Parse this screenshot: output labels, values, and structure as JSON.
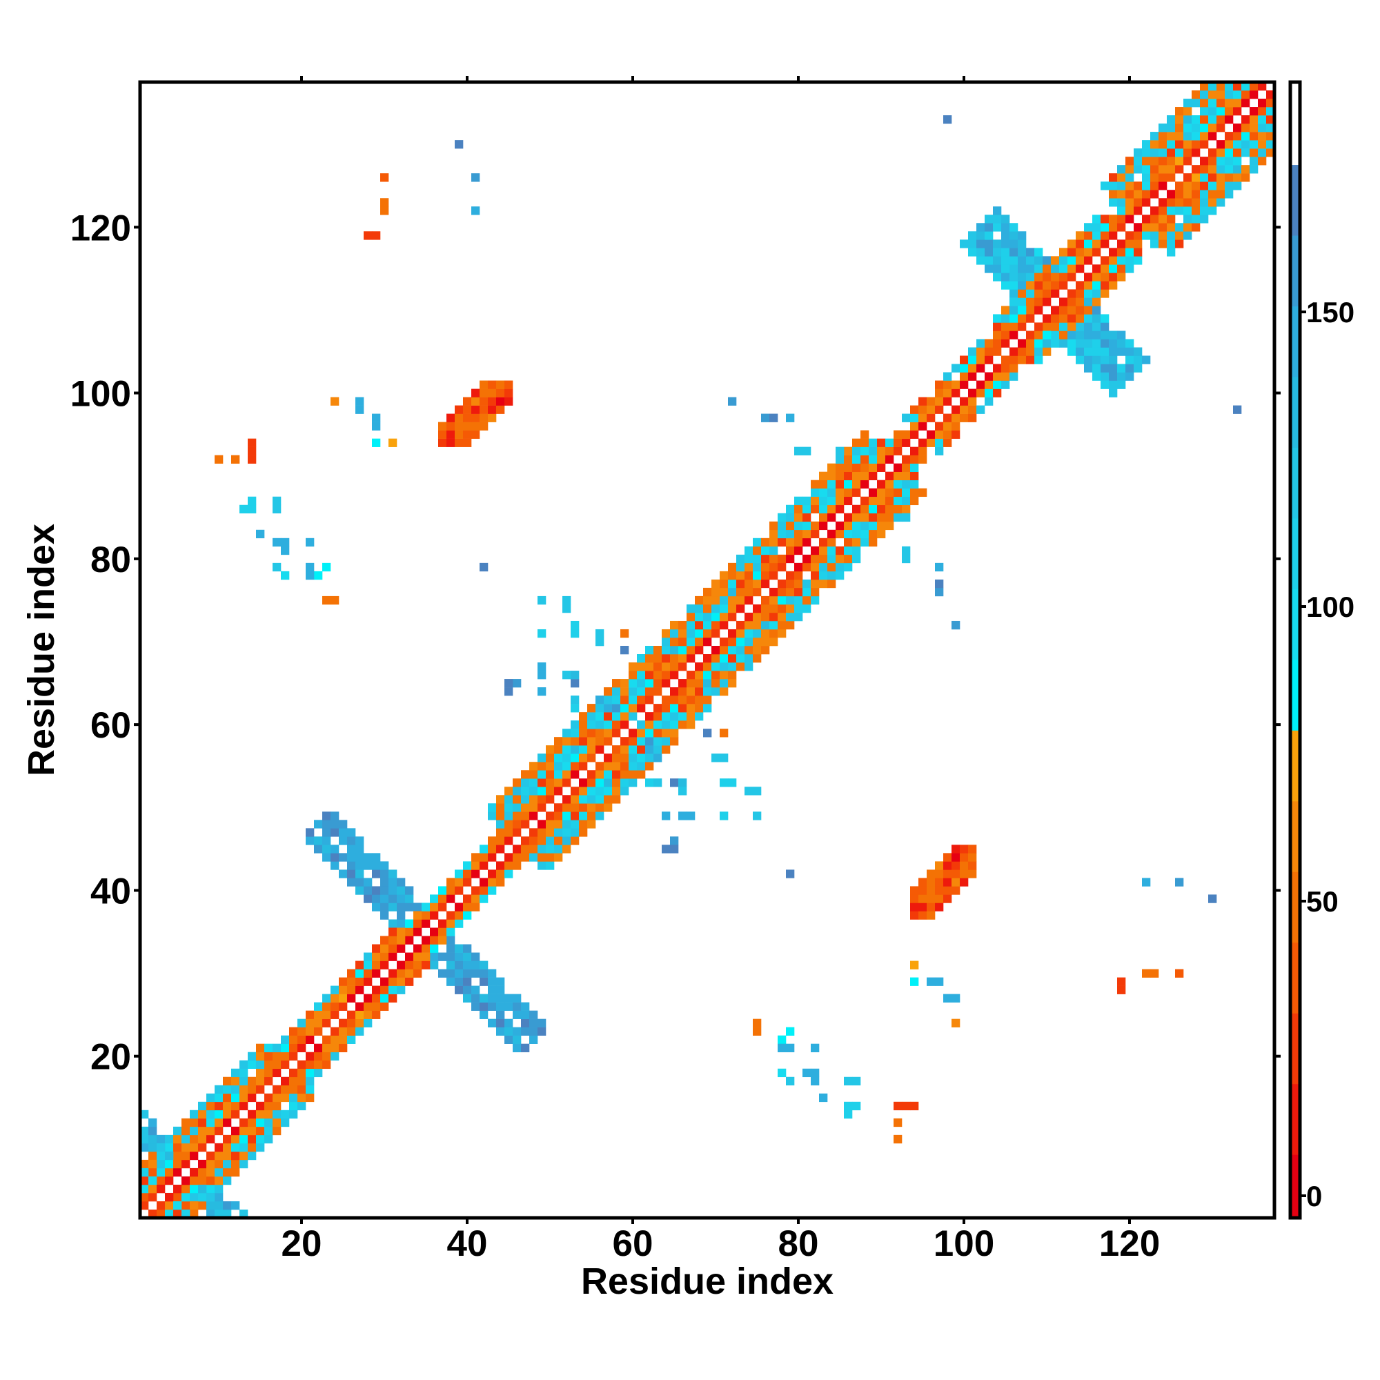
{
  "chart_data": {
    "type": "heatmap",
    "title": "",
    "xlabel": "Residue index",
    "ylabel": "Residue index",
    "n_residues": 137,
    "xlim": [
      0.5,
      137.5
    ],
    "ylim": [
      0.5,
      137.5
    ],
    "xticks": [
      20,
      40,
      60,
      80,
      100,
      120
    ],
    "yticks": [
      20,
      40,
      60,
      80,
      100,
      120
    ],
    "xtick_labels": [
      "20",
      "40",
      "60",
      "80",
      "100",
      "120"
    ],
    "ytick_labels": [
      "20",
      "40",
      "60",
      "80",
      "100",
      "120"
    ],
    "symmetric": true,
    "colorbar": {
      "range": [
        -3.75,
        189
      ],
      "ticks": [
        0,
        50,
        100,
        150
      ],
      "tick_labels": [
        "0",
        "50",
        "100",
        "150"
      ],
      "bins": [
        {
          "from": -3.75,
          "to": 7,
          "color": "#e60012"
        },
        {
          "from": 7,
          "to": 19,
          "color": "#ee1a0c"
        },
        {
          "from": 19,
          "to": 31,
          "color": "#f33a08"
        },
        {
          "from": 31,
          "to": 43,
          "color": "#f55a05"
        },
        {
          "from": 43,
          "to": 55,
          "color": "#f47205"
        },
        {
          "from": 55,
          "to": 67,
          "color": "#f6870a"
        },
        {
          "from": 67,
          "to": 79,
          "color": "#f9a20c"
        },
        {
          "from": 79,
          "to": 91,
          "color": "#00f0f8"
        },
        {
          "from": 91,
          "to": 103,
          "color": "#18dbef"
        },
        {
          "from": 103,
          "to": 115,
          "color": "#1fd0ea"
        },
        {
          "from": 115,
          "to": 127,
          "color": "#24c6e6"
        },
        {
          "from": 127,
          "to": 139,
          "color": "#27bbe0"
        },
        {
          "from": 139,
          "to": 151,
          "color": "#2eaede"
        },
        {
          "from": 151,
          "to": 163,
          "color": "#399bd2"
        },
        {
          "from": 163,
          "to": 175,
          "color": "#4b82c0"
        },
        {
          "from": 175,
          "to": 189,
          "color": "#ffffff"
        }
      ]
    },
    "diagonal_band": {
      "segments": [
        {
          "from": 1,
          "to": 20,
          "halfwidth": 6
        },
        {
          "from": 20,
          "to": 34,
          "halfwidth": 4
        },
        {
          "from": 34,
          "to": 46,
          "halfwidth": 3
        },
        {
          "from": 46,
          "to": 72,
          "halfwidth": 7
        },
        {
          "from": 72,
          "to": 92,
          "halfwidth": 7
        },
        {
          "from": 92,
          "to": 106,
          "halfwidth": 4
        },
        {
          "from": 106,
          "to": 121,
          "halfwidth": 5
        },
        {
          "from": 121,
          "to": 138,
          "halfwidth": 8
        }
      ],
      "values_by_offset": [
        null,
        15,
        50,
        100,
        40,
        110,
        60,
        120,
        45
      ]
    },
    "antiparallel_crosses": [
      {
        "center": 35,
        "halfwidth": 2,
        "extent": 13,
        "vmin": 135,
        "vmax": 172
      },
      {
        "center": 111,
        "halfwidth": 3,
        "extent": 9,
        "vmin": 100,
        "vmax": 165
      },
      {
        "center": 5.5,
        "halfwidth": 2,
        "extent": 6,
        "vmin": 115,
        "vmax": 160
      }
    ],
    "blobs": [
      {
        "x": [
          94,
          101
        ],
        "y": [
          37,
          45
        ],
        "offset": [
          54,
          59
        ],
        "vmin": 5,
        "vmax": 60
      }
    ],
    "points": [
      [
        133,
        98,
        165
      ],
      [
        72,
        99,
        150
      ],
      [
        76,
        97,
        160
      ],
      [
        79,
        97,
        160
      ],
      [
        80,
        93,
        125
      ],
      [
        81,
        93,
        125
      ],
      [
        93,
        85,
        125
      ],
      [
        97,
        79,
        140
      ],
      [
        97,
        77,
        165
      ],
      [
        99,
        72,
        160
      ],
      [
        79,
        42,
        165
      ],
      [
        122,
        41,
        150
      ],
      [
        126,
        41,
        160
      ],
      [
        130,
        39,
        165
      ],
      [
        119,
        29,
        20
      ],
      [
        119,
        28,
        20
      ],
      [
        122,
        30,
        45
      ],
      [
        123,
        30,
        45
      ],
      [
        126,
        30,
        40
      ],
      [
        94,
        31,
        75
      ],
      [
        94,
        29,
        85
      ],
      [
        96,
        29,
        140
      ],
      [
        97,
        29,
        140
      ],
      [
        98,
        27,
        145
      ],
      [
        99,
        27,
        145
      ],
      [
        99,
        24,
        60
      ],
      [
        75,
        23,
        45
      ],
      [
        75,
        24,
        45
      ],
      [
        78,
        22,
        85
      ],
      [
        79,
        23,
        90
      ],
      [
        78,
        21,
        140
      ],
      [
        79,
        21,
        140
      ],
      [
        82,
        21,
        150
      ],
      [
        78,
        18,
        95
      ],
      [
        79,
        17,
        120
      ],
      [
        81,
        18,
        145
      ],
      [
        82,
        18,
        150
      ],
      [
        82,
        17,
        150
      ],
      [
        83,
        15,
        145
      ],
      [
        86,
        17,
        115
      ],
      [
        87,
        17,
        115
      ],
      [
        86,
        14,
        110
      ],
      [
        87,
        14,
        110
      ],
      [
        86,
        13,
        110
      ],
      [
        92,
        14,
        20
      ],
      [
        93,
        14,
        20
      ],
      [
        94,
        14,
        25
      ],
      [
        92,
        12,
        45
      ],
      [
        92,
        10,
        45
      ],
      [
        62,
        53,
        110
      ],
      [
        63,
        53,
        120
      ],
      [
        65,
        53,
        165
      ],
      [
        66,
        53,
        130
      ],
      [
        64,
        49,
        140
      ],
      [
        66,
        49,
        150
      ],
      [
        67,
        49,
        150
      ],
      [
        65,
        46,
        160
      ],
      [
        64,
        45,
        165
      ],
      [
        65,
        45,
        165
      ],
      [
        71,
        53,
        110
      ],
      [
        72,
        53,
        110
      ],
      [
        74,
        52,
        125
      ],
      [
        75,
        52,
        125
      ],
      [
        71,
        49,
        110
      ],
      [
        75,
        49,
        120
      ],
      [
        70,
        56,
        115
      ],
      [
        71,
        56,
        115
      ],
      [
        69,
        59,
        165
      ],
      [
        71,
        59,
        50
      ],
      [
        66,
        52,
        120
      ],
      [
        62,
        57,
        150
      ],
      [
        63,
        56,
        140
      ],
      [
        60,
        61,
        125
      ],
      [
        58,
        62,
        160
      ]
    ]
  }
}
